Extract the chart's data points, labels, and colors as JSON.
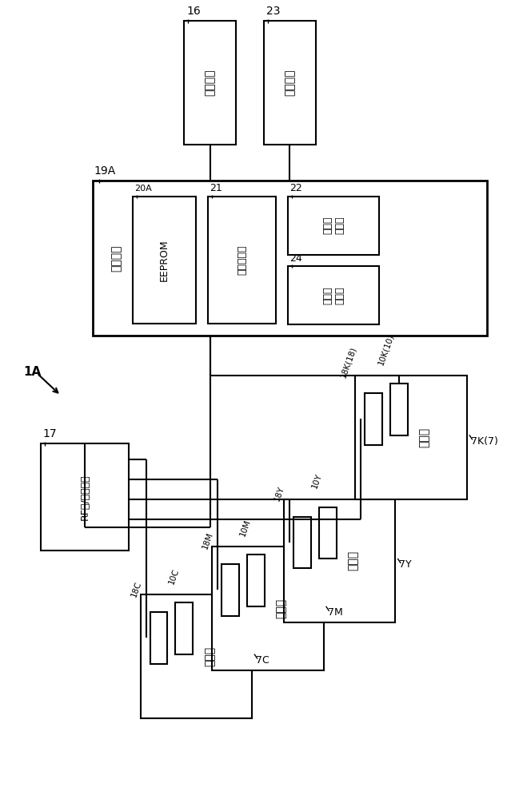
{
  "bg_color": "#ffffff",
  "texts": {
    "renjiekou": "人机接口",
    "dayinyinqing": "打印引擎",
    "zhukongzhiqi": "主控制器",
    "EEPROM": "EEPROM",
    "shouming": "寿命确定部",
    "shiyong": "数使用\n计数部",
    "xuanzhuan": "数旋转\n计算部",
    "RF": "RF读/写控制器",
    "gudanyuan": "鼓单元"
  }
}
